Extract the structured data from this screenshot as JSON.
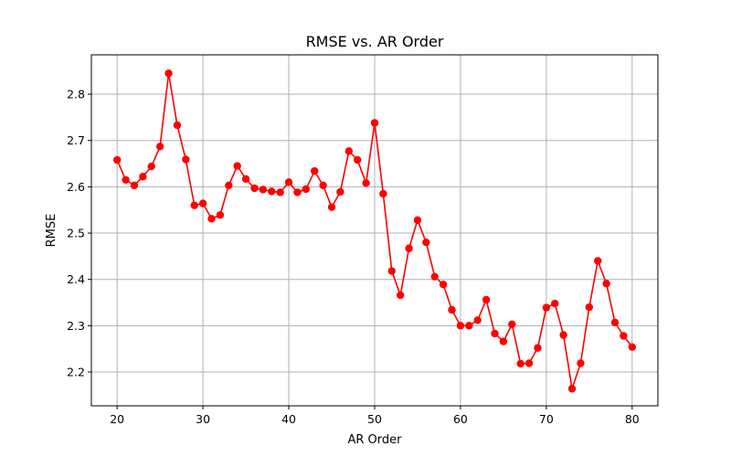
{
  "chart_data": {
    "type": "line",
    "title": "RMSE vs. AR Order",
    "xlabel": "AR Order",
    "ylabel": "RMSE",
    "xlim": [
      17,
      83
    ],
    "ylim": [
      2.127,
      2.885
    ],
    "xticks": [
      20,
      30,
      40,
      50,
      60,
      70,
      80
    ],
    "yticks": [
      2.2,
      2.3,
      2.4,
      2.5,
      2.6,
      2.7,
      2.8
    ],
    "ytick_labels": [
      "2.2",
      "2.3",
      "2.4",
      "2.5",
      "2.6",
      "2.7",
      "2.8"
    ],
    "grid": true,
    "series": [
      {
        "color": "#ff0000",
        "marker": "circle",
        "x": [
          20,
          21,
          22,
          23,
          24,
          25,
          26,
          27,
          28,
          29,
          30,
          31,
          32,
          33,
          34,
          35,
          36,
          37,
          38,
          39,
          40,
          41,
          42,
          43,
          44,
          45,
          46,
          47,
          48,
          49,
          50,
          51,
          52,
          53,
          54,
          55,
          56,
          57,
          58,
          59,
          60,
          61,
          62,
          63,
          64,
          65,
          66,
          67,
          68,
          69,
          70,
          71,
          72,
          73,
          74,
          75,
          76,
          77,
          78,
          79,
          80
        ],
        "y": [
          2.658,
          2.615,
          2.603,
          2.622,
          2.644,
          2.687,
          2.845,
          2.733,
          2.659,
          2.56,
          2.564,
          2.531,
          2.539,
          2.603,
          2.645,
          2.617,
          2.597,
          2.594,
          2.59,
          2.588,
          2.61,
          2.588,
          2.595,
          2.634,
          2.603,
          2.556,
          2.589,
          2.677,
          2.658,
          2.608,
          2.738,
          2.585,
          2.418,
          2.366,
          2.467,
          2.528,
          2.48,
          2.406,
          2.389,
          2.334,
          2.3,
          2.3,
          2.312,
          2.356,
          2.283,
          2.266,
          2.303,
          2.218,
          2.219,
          2.252,
          2.339,
          2.348,
          2.28,
          2.164,
          2.219,
          2.34,
          2.44,
          2.391,
          2.307,
          2.278,
          2.254
        ]
      }
    ]
  }
}
